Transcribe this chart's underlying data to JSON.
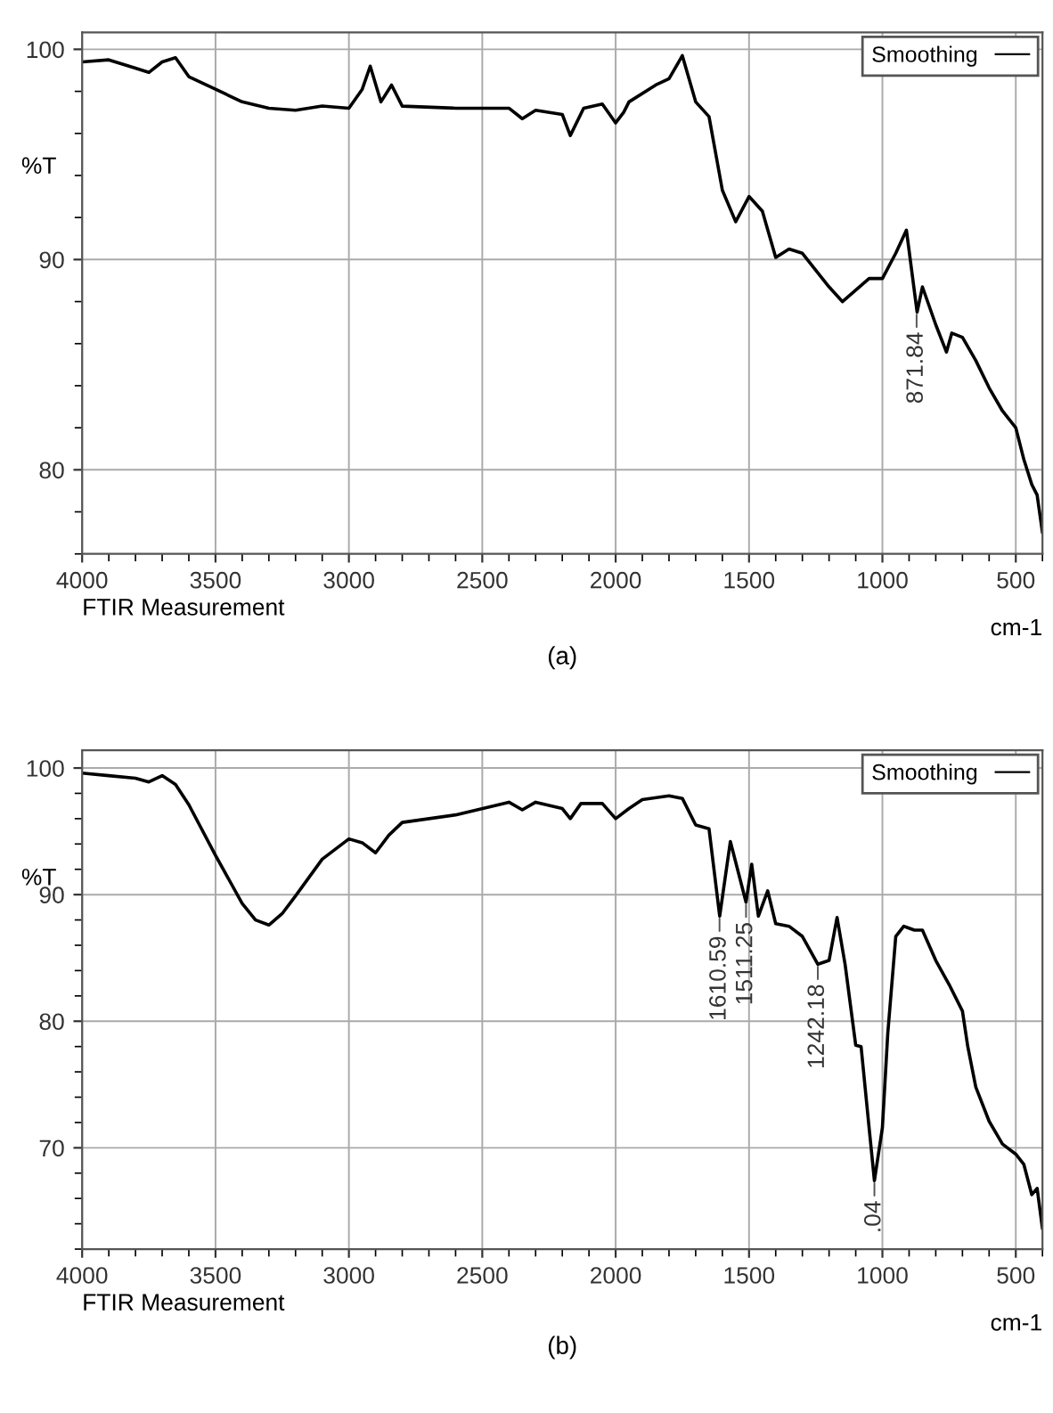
{
  "chart_data": [
    {
      "type": "line",
      "title": "(a)",
      "xlabel": "FTIR Measurement",
      "ylabel": "%T",
      "legend": "top right",
      "grid": true,
      "marker": "none",
      "line_style": "solid",
      "xlim": [
        4000,
        400
      ],
      "ylim": [
        76,
        100.8
      ],
      "xticks": [
        4000,
        3500,
        3000,
        2500,
        2000,
        1500,
        1000,
        500
      ],
      "yticks": [
        80,
        90,
        100
      ],
      "annotations": [
        "cm-1",
        {
          "text": "871.84",
          "x": 871.84,
          "y": 87.5
        }
      ],
      "series": [
        {
          "name": "Smoothing",
          "color": "#000000",
          "x": [
            4000,
            3900,
            3800,
            3750,
            3700,
            3650,
            3600,
            3500,
            3400,
            3300,
            3200,
            3100,
            3000,
            2950,
            2920,
            2880,
            2840,
            2800,
            2600,
            2400,
            2350,
            2300,
            2200,
            2170,
            2120,
            2050,
            2000,
            1970,
            1950,
            1850,
            1800,
            1750,
            1700,
            1650,
            1600,
            1550,
            1500,
            1450,
            1400,
            1350,
            1300,
            1200,
            1150,
            1050,
            1000,
            950,
            910,
            870,
            850,
            800,
            760,
            740,
            700,
            650,
            600,
            550,
            500,
            470,
            440,
            420,
            400
          ],
          "values": [
            99.4,
            99.5,
            99.1,
            98.9,
            99.4,
            99.6,
            98.7,
            98.1,
            97.5,
            97.2,
            97.1,
            97.3,
            97.2,
            98.1,
            99.2,
            97.5,
            98.3,
            97.3,
            97.2,
            97.2,
            96.7,
            97.1,
            96.9,
            95.9,
            97.2,
            97.4,
            96.5,
            97.0,
            97.5,
            98.3,
            98.6,
            99.7,
            97.5,
            96.8,
            93.3,
            91.8,
            93.0,
            92.3,
            90.1,
            90.5,
            90.3,
            88.7,
            88.0,
            89.1,
            89.1,
            90.3,
            91.4,
            87.5,
            88.7,
            86.9,
            85.6,
            86.5,
            86.3,
            85.2,
            83.9,
            82.8,
            82.0,
            80.5,
            79.3,
            78.8,
            77.0
          ]
        }
      ]
    },
    {
      "type": "line",
      "title": "(b)",
      "xlabel": "FTIR Measurement",
      "ylabel": "%T",
      "legend": "top right",
      "grid": true,
      "marker": "none",
      "line_style": "solid",
      "xlim": [
        4000,
        400
      ],
      "ylim": [
        62,
        101.4
      ],
      "xticks": [
        4000,
        3500,
        3000,
        2500,
        2000,
        1500,
        1000,
        500
      ],
      "yticks": [
        70,
        80,
        90,
        100
      ],
      "annotations": [
        "cm-1",
        {
          "text": "1610.59",
          "x": 1610.59,
          "y": 88.3
        },
        {
          "text": "1511.25",
          "x": 1511.25,
          "y": 89.4
        },
        {
          "text": "1242.18",
          "x": 1242.18,
          "y": 84.5
        },
        {
          "text": ".04",
          "x": 1030,
          "y": 67.4
        }
      ],
      "series": [
        {
          "name": "Smoothing",
          "color": "#000000",
          "x": [
            4000,
            3900,
            3800,
            3750,
            3700,
            3650,
            3600,
            3500,
            3400,
            3350,
            3300,
            3250,
            3200,
            3100,
            3000,
            2950,
            2900,
            2850,
            2800,
            2600,
            2400,
            2350,
            2300,
            2200,
            2170,
            2130,
            2050,
            2000,
            1950,
            1900,
            1800,
            1750,
            1700,
            1650,
            1610,
            1570,
            1511.25,
            1490,
            1465,
            1430,
            1400,
            1350,
            1300,
            1242,
            1200,
            1170,
            1140,
            1100,
            1080,
            1050,
            1030,
            1000,
            980,
            950,
            920,
            880,
            850,
            800,
            750,
            700,
            680,
            650,
            600,
            550,
            500,
            470,
            440,
            420,
            400
          ],
          "values": [
            99.6,
            99.4,
            99.2,
            98.9,
            99.4,
            98.7,
            97.1,
            93.1,
            89.3,
            88.0,
            87.6,
            88.5,
            89.9,
            92.8,
            94.4,
            94.1,
            93.3,
            94.7,
            95.7,
            96.3,
            97.3,
            96.7,
            97.3,
            96.8,
            96.0,
            97.2,
            97.2,
            96.0,
            96.8,
            97.5,
            97.8,
            97.6,
            95.5,
            95.2,
            88.3,
            94.2,
            89.4,
            92.4,
            88.3,
            90.3,
            87.7,
            87.5,
            86.7,
            84.5,
            84.8,
            88.2,
            84.5,
            78.1,
            78.0,
            71.6,
            67.4,
            71.6,
            79.0,
            86.7,
            87.5,
            87.2,
            87.2,
            84.8,
            82.9,
            80.8,
            78.0,
            74.8,
            72.1,
            70.3,
            69.5,
            68.7,
            66.3,
            66.8,
            63.6
          ]
        }
      ]
    }
  ]
}
